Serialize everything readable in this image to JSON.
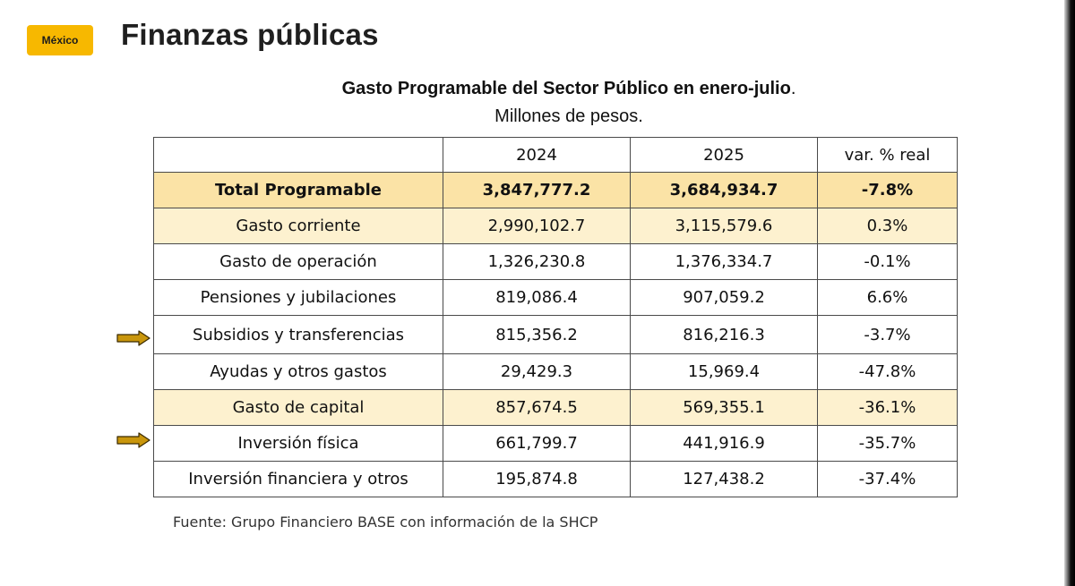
{
  "badge": {
    "label": "México",
    "color": "#f7b800"
  },
  "header": {
    "title": "Finanzas públicas"
  },
  "table": {
    "title": "Gasto Programable del Sector Público en enero-julio",
    "title_punct": ".",
    "subtitle": "Millones de pesos.",
    "columns": [
      "",
      "2024",
      "2025",
      "var. % real"
    ],
    "rows": [
      {
        "label": "Total Programable",
        "v2024": "3,847,777.2",
        "v2025": "3,684,934.7",
        "var": "-7.8%"
      },
      {
        "label": "Gasto corriente",
        "v2024": "2,990,102.7",
        "v2025": "3,115,579.6",
        "var": "0.3%"
      },
      {
        "label": "Gasto de operación",
        "v2024": "1,326,230.8",
        "v2025": "1,376,334.7",
        "var": "-0.1%"
      },
      {
        "label": "Pensiones y jubilaciones",
        "v2024": "819,086.4",
        "v2025": "907,059.2",
        "var": "6.6%"
      },
      {
        "label": "Subsidios y transferencias",
        "v2024": "815,356.2",
        "v2025": "816,216.3",
        "var": "-3.7%"
      },
      {
        "label": "Ayudas y otros gastos",
        "v2024": "29,429.3",
        "v2025": "15,969.4",
        "var": "-47.8%"
      },
      {
        "label": "Gasto de capital",
        "v2024": "857,674.5",
        "v2025": "569,355.1",
        "var": "-36.1%"
      },
      {
        "label": "Inversión física",
        "v2024": "661,799.7",
        "v2025": "441,916.9",
        "var": "-35.7%"
      },
      {
        "label": "Inversión financiera y otros",
        "v2024": "195,874.8",
        "v2025": "127,438.2",
        "var": "-37.4%"
      }
    ]
  },
  "arrows": [
    {
      "icon": "right-arrow-icon",
      "points_to_row": "Subsidios y transferencias"
    },
    {
      "icon": "right-arrow-icon",
      "points_to_row": "Inversión física"
    }
  ],
  "colors": {
    "total_row": "#fbe3a6",
    "subtotal_row": "#fdf1cf",
    "arrow": "#c9960c"
  },
  "source": "Fuente: Grupo Financiero BASE con información de la SHCP"
}
